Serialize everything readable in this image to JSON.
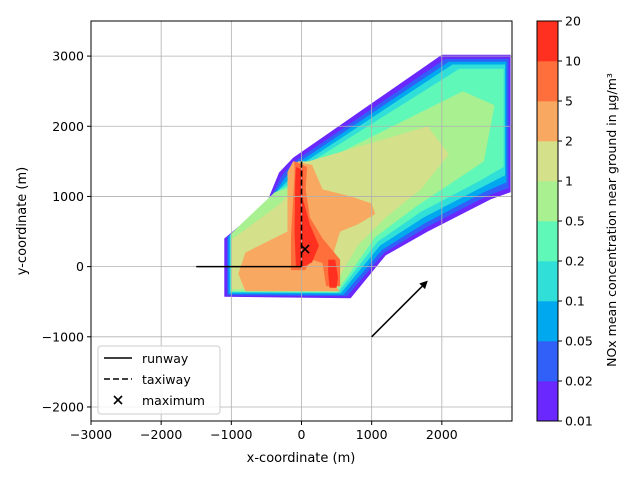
{
  "chart_data": {
    "type": "heatmap",
    "xlabel": "x-coordinate (m)",
    "ylabel": "y-coordinate (m)",
    "xlim": [
      -3000,
      3000
    ],
    "ylim": [
      -2200,
      3500
    ],
    "x_ticks": [
      -3000,
      -2000,
      -1000,
      0,
      1000,
      2000
    ],
    "x_tick_labels": [
      "−3000",
      "−2000",
      "−1000",
      "0",
      "1000",
      "2000"
    ],
    "y_ticks": [
      -2000,
      -1000,
      0,
      1000,
      2000,
      3000
    ],
    "y_tick_labels": [
      "−2000",
      "−1000",
      "0",
      "1000",
      "2000",
      "3000"
    ],
    "grid": true,
    "legend_position": "lower-left",
    "legend": [
      {
        "label": "runway",
        "style": "solid"
      },
      {
        "label": "taxiway",
        "style": "dashed"
      },
      {
        "label": "maximum",
        "style": "x-marker"
      }
    ],
    "colorbar": {
      "label": "NOx mean concentration near ground in µg/m³",
      "levels": [
        "0.01",
        "0.02",
        "0.05",
        "0.1",
        "0.2",
        "0.5",
        "1",
        "2",
        "5",
        "10",
        "20"
      ],
      "colors": [
        "#6a28ff",
        "#3060f8",
        "#00a8f0",
        "#30e0d8",
        "#60f8b8",
        "#a8f090",
        "#d4e08a",
        "#f8a860",
        "#ff6f3c",
        "#ff3020"
      ]
    },
    "runway": {
      "x": [
        -1500,
        0
      ],
      "y": [
        0,
        0
      ]
    },
    "taxiway": {
      "x": [
        0,
        0
      ],
      "y": [
        0,
        1500
      ]
    },
    "maximum": {
      "x": 50,
      "y": 250
    },
    "wind_arrow": {
      "from": [
        1000,
        -1000
      ],
      "to": [
        1800,
        -200
      ]
    },
    "contours": [
      {
        "level_index": 0,
        "polygon": [
          [
            -320,
            1340
          ],
          [
            -120,
            1550
          ],
          [
            2000,
            3020
          ],
          [
            2980,
            3020
          ],
          [
            2980,
            1060
          ],
          [
            2700,
            960
          ],
          [
            1800,
            500
          ],
          [
            1200,
            160
          ],
          [
            700,
            -450
          ],
          [
            -1100,
            -430
          ],
          [
            -1100,
            400
          ],
          [
            -500,
            900
          ]
        ]
      },
      {
        "level_index": 1,
        "polygon": [
          [
            -280,
            1300
          ],
          [
            -100,
            1500
          ],
          [
            2050,
            2960
          ],
          [
            2950,
            2960
          ],
          [
            2950,
            1120
          ],
          [
            2650,
            1010
          ],
          [
            1780,
            560
          ],
          [
            1180,
            200
          ],
          [
            650,
            -420
          ],
          [
            -1060,
            -410
          ],
          [
            -1060,
            420
          ],
          [
            -470,
            920
          ]
        ]
      },
      {
        "level_index": 2,
        "polygon": [
          [
            -240,
            1260
          ],
          [
            -80,
            1460
          ],
          [
            2100,
            2920
          ],
          [
            2920,
            2920
          ],
          [
            2920,
            1200
          ],
          [
            2600,
            1060
          ],
          [
            1760,
            620
          ],
          [
            1150,
            240
          ],
          [
            600,
            -400
          ],
          [
            -1040,
            -390
          ],
          [
            -1040,
            430
          ],
          [
            -440,
            960
          ]
        ]
      },
      {
        "level_index": 3,
        "polygon": [
          [
            -200,
            1220
          ],
          [
            -60,
            1420
          ],
          [
            2150,
            2880
          ],
          [
            2900,
            2880
          ],
          [
            2900,
            1300
          ],
          [
            2550,
            1120
          ],
          [
            1740,
            700
          ],
          [
            1120,
            300
          ],
          [
            560,
            -380
          ],
          [
            -1020,
            -370
          ],
          [
            -1020,
            450
          ],
          [
            -420,
            1000
          ]
        ]
      },
      {
        "level_index": 4,
        "polygon": [
          [
            -160,
            1180
          ],
          [
            -40,
            1380
          ],
          [
            2250,
            2820
          ],
          [
            2880,
            2820
          ],
          [
            2880,
            1420
          ],
          [
            2500,
            1200
          ],
          [
            1700,
            780
          ],
          [
            1090,
            360
          ],
          [
            520,
            -370
          ],
          [
            -1010,
            -360
          ],
          [
            -1010,
            460
          ],
          [
            -400,
            1040
          ]
        ]
      },
      {
        "level_index": 5,
        "polygon": [
          [
            -100,
            1150
          ],
          [
            0,
            1350
          ],
          [
            2300,
            2500
          ],
          [
            2750,
            2300
          ],
          [
            2600,
            1500
          ],
          [
            2300,
            1300
          ],
          [
            1650,
            870
          ],
          [
            1050,
            420
          ],
          [
            500,
            -360
          ],
          [
            -1000,
            -350
          ],
          [
            -1000,
            470
          ],
          [
            -380,
            1060
          ]
        ]
      },
      {
        "level_index": 6,
        "polygon": [
          [
            -50,
            1500
          ],
          [
            100,
            1500
          ],
          [
            1800,
            2000
          ],
          [
            2100,
            1600
          ],
          [
            1700,
            1100
          ],
          [
            1200,
            700
          ],
          [
            800,
            300
          ],
          [
            450,
            -300
          ],
          [
            -1000,
            -320
          ],
          [
            -1000,
            380
          ],
          [
            -300,
            900
          ],
          [
            -80,
            1150
          ]
        ]
      },
      {
        "level_index": 7,
        "polygon": [
          [
            -120,
            1500
          ],
          [
            150,
            1450
          ],
          [
            300,
            1100
          ],
          [
            700,
            1000
          ],
          [
            1000,
            900
          ],
          [
            1050,
            750
          ],
          [
            800,
            600
          ],
          [
            550,
            500
          ],
          [
            350,
            -150
          ],
          [
            550,
            -350
          ],
          [
            -800,
            -350
          ],
          [
            -900,
            -100
          ],
          [
            -800,
            200
          ],
          [
            -200,
            500
          ],
          [
            -200,
            1350
          ]
        ]
      },
      {
        "level_index": 8,
        "polygon": [
          [
            -100,
            1500
          ],
          [
            80,
            1420
          ],
          [
            60,
            1100
          ],
          [
            120,
            700
          ],
          [
            300,
            400
          ],
          [
            550,
            100
          ],
          [
            550,
            -280
          ],
          [
            350,
            -280
          ],
          [
            300,
            50
          ],
          [
            150,
            100
          ],
          [
            50,
            -50
          ],
          [
            -150,
            -50
          ],
          [
            -150,
            450
          ],
          [
            -100,
            1300
          ]
        ]
      },
      {
        "level_index": 9,
        "polygon": [
          [
            -80,
            1420
          ],
          [
            20,
            1380
          ],
          [
            10,
            1000
          ],
          [
            120,
            600
          ],
          [
            250,
            300
          ],
          [
            150,
            60
          ],
          [
            30,
            0
          ],
          [
            -80,
            0
          ],
          [
            -100,
            500
          ],
          [
            -90,
            1200
          ]
        ]
      },
      {
        "level_index": 9,
        "polygon": [
          [
            380,
            100
          ],
          [
            480,
            100
          ],
          [
            520,
            -150
          ],
          [
            500,
            -300
          ],
          [
            400,
            -300
          ],
          [
            380,
            -100
          ]
        ]
      }
    ]
  }
}
